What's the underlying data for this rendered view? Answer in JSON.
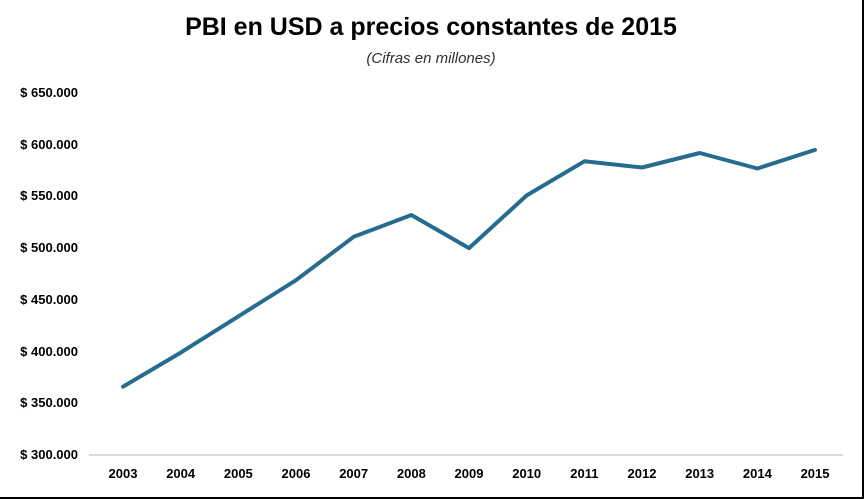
{
  "page": {
    "title": "PBI en USD a precios constantes de 2015",
    "subtitle": "(Cifras en millones)"
  },
  "chart_data": {
    "type": "line",
    "title": "PBI en USD a precios constantes de 2015",
    "subtitle": "(Cifras en millones)",
    "categories": [
      "2003",
      "2004",
      "2005",
      "2006",
      "2007",
      "2008",
      "2009",
      "2010",
      "2011",
      "2012",
      "2013",
      "2014",
      "2015"
    ],
    "values": [
      366000,
      399000,
      434000,
      469000,
      511000,
      532000,
      500000,
      551000,
      584000,
      578000,
      592000,
      577000,
      595000
    ],
    "xlabel": "",
    "ylabel": "",
    "ylim": [
      300000,
      650000
    ],
    "ytick_step": 50000,
    "ytick_labels": [
      "$ 300.000",
      "$ 350.000",
      "$ 400.000",
      "$ 450.000",
      "$ 500.000",
      "$ 550.000",
      "$ 600.000",
      "$ 650.000"
    ],
    "grid": false,
    "legend": false,
    "line_color": "#256C8F",
    "axis_color": "#D9D9D9",
    "text_color": "#000000"
  }
}
